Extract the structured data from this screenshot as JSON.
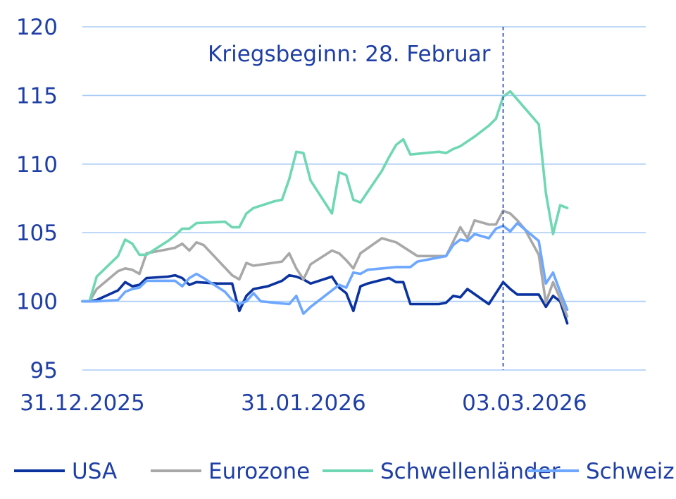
{
  "chart_data": {
    "type": "line",
    "title": "",
    "xlabel": "",
    "ylabel": "",
    "x_start": "2025-12-31",
    "x_end": "2026-03-20",
    "ylim": [
      95,
      120
    ],
    "y_ticks": [
      95,
      100,
      105,
      110,
      115,
      120
    ],
    "x_ticks": [
      {
        "date": "2025-12-31",
        "label": "31.12.2025"
      },
      {
        "date": "2026-01-31",
        "label": "31.01.2026"
      },
      {
        "date": "2026-03-03",
        "label": "03.03.2026"
      }
    ],
    "grid": "horizontal",
    "legend_position": "bottom",
    "annotation": {
      "date": "2026-02-28",
      "text": "Kriegsbeginn: 28. Februar",
      "style": "dashed vertical line"
    },
    "series": [
      {
        "name": "USA",
        "color": "#0b33a0",
        "points": [
          [
            "2025-12-31",
            100.0
          ],
          [
            "2026-01-01",
            100.0
          ],
          [
            "2026-01-02",
            100.1
          ],
          [
            "2026-01-05",
            100.8
          ],
          [
            "2026-01-06",
            101.4
          ],
          [
            "2026-01-07",
            101.1
          ],
          [
            "2026-01-08",
            101.2
          ],
          [
            "2026-01-09",
            101.7
          ],
          [
            "2026-01-12",
            101.8
          ],
          [
            "2026-01-13",
            101.9
          ],
          [
            "2026-01-14",
            101.7
          ],
          [
            "2026-01-15",
            101.2
          ],
          [
            "2026-01-16",
            101.4
          ],
          [
            "2026-01-19",
            101.3
          ],
          [
            "2026-01-20",
            101.3
          ],
          [
            "2026-01-21",
            101.3
          ],
          [
            "2026-01-22",
            99.3
          ],
          [
            "2026-01-23",
            100.4
          ],
          [
            "2026-01-24",
            100.9
          ],
          [
            "2026-01-26",
            101.1
          ],
          [
            "2026-01-27",
            101.3
          ],
          [
            "2026-01-28",
            101.5
          ],
          [
            "2026-01-29",
            101.9
          ],
          [
            "2026-01-30",
            101.8
          ],
          [
            "2026-01-31",
            101.6
          ],
          [
            "2026-02-01",
            101.3
          ],
          [
            "2026-02-04",
            101.8
          ],
          [
            "2026-02-05",
            101.0
          ],
          [
            "2026-02-06",
            100.6
          ],
          [
            "2026-02-07",
            99.3
          ],
          [
            "2026-02-08",
            101.1
          ],
          [
            "2026-02-09",
            101.3
          ],
          [
            "2026-02-12",
            101.7
          ],
          [
            "2026-02-13",
            101.4
          ],
          [
            "2026-02-14",
            101.4
          ],
          [
            "2026-02-15",
            99.8
          ],
          [
            "2026-02-19",
            99.8
          ],
          [
            "2026-02-20",
            99.9
          ],
          [
            "2026-02-21",
            100.4
          ],
          [
            "2026-02-22",
            100.3
          ],
          [
            "2026-02-23",
            100.9
          ],
          [
            "2026-02-26",
            99.8
          ],
          [
            "2026-02-28",
            101.4
          ],
          [
            "2026-03-01",
            100.9
          ],
          [
            "2026-03-02",
            100.5
          ],
          [
            "2026-03-05",
            100.5
          ],
          [
            "2026-03-06",
            99.6
          ],
          [
            "2026-03-07",
            100.4
          ],
          [
            "2026-03-08",
            100.0
          ],
          [
            "2026-03-09",
            98.4
          ]
        ]
      },
      {
        "name": "Eurozone",
        "color": "#a8a8a8",
        "points": [
          [
            "2025-12-31",
            100.0
          ],
          [
            "2026-01-01",
            100.0
          ],
          [
            "2026-01-02",
            100.9
          ],
          [
            "2026-01-05",
            102.2
          ],
          [
            "2026-01-06",
            102.4
          ],
          [
            "2026-01-07",
            102.3
          ],
          [
            "2026-01-08",
            102.0
          ],
          [
            "2026-01-09",
            103.5
          ],
          [
            "2026-01-12",
            103.8
          ],
          [
            "2026-01-13",
            103.9
          ],
          [
            "2026-01-14",
            104.2
          ],
          [
            "2026-01-15",
            103.7
          ],
          [
            "2026-01-16",
            104.3
          ],
          [
            "2026-01-17",
            104.1
          ],
          [
            "2026-01-21",
            101.9
          ],
          [
            "2026-01-22",
            101.6
          ],
          [
            "2026-01-23",
            102.8
          ],
          [
            "2026-01-24",
            102.6
          ],
          [
            "2026-01-28",
            102.9
          ],
          [
            "2026-01-29",
            103.5
          ],
          [
            "2026-01-30",
            102.4
          ],
          [
            "2026-01-31",
            101.6
          ],
          [
            "2026-02-01",
            102.7
          ],
          [
            "2026-02-04",
            103.7
          ],
          [
            "2026-02-05",
            103.5
          ],
          [
            "2026-02-06",
            103.0
          ],
          [
            "2026-02-07",
            102.4
          ],
          [
            "2026-02-08",
            103.5
          ],
          [
            "2026-02-11",
            104.6
          ],
          [
            "2026-02-13",
            104.3
          ],
          [
            "2026-02-16",
            103.3
          ],
          [
            "2026-02-20",
            103.3
          ],
          [
            "2026-02-22",
            105.4
          ],
          [
            "2026-02-23",
            104.6
          ],
          [
            "2026-02-24",
            105.9
          ],
          [
            "2026-02-26",
            105.6
          ],
          [
            "2026-02-27",
            105.6
          ],
          [
            "2026-02-28",
            106.6
          ],
          [
            "2026-03-01",
            106.4
          ],
          [
            "2026-03-02",
            105.9
          ],
          [
            "2026-03-03",
            105.3
          ],
          [
            "2026-03-05",
            103.4
          ],
          [
            "2026-03-06",
            99.9
          ],
          [
            "2026-03-07",
            101.4
          ],
          [
            "2026-03-08",
            100.2
          ],
          [
            "2026-03-09",
            98.9
          ]
        ]
      },
      {
        "name": "Schwellenländer",
        "color": "#6fd7b4",
        "points": [
          [
            "2025-12-31",
            100.0
          ],
          [
            "2026-01-01",
            100.0
          ],
          [
            "2026-01-02",
            101.8
          ],
          [
            "2026-01-05",
            103.3
          ],
          [
            "2026-01-06",
            104.5
          ],
          [
            "2026-01-07",
            104.2
          ],
          [
            "2026-01-08",
            103.4
          ],
          [
            "2026-01-09",
            103.4
          ],
          [
            "2026-01-12",
            104.4
          ],
          [
            "2026-01-13",
            104.8
          ],
          [
            "2026-01-14",
            105.3
          ],
          [
            "2026-01-15",
            105.3
          ],
          [
            "2026-01-16",
            105.7
          ],
          [
            "2026-01-20",
            105.8
          ],
          [
            "2026-01-21",
            105.4
          ],
          [
            "2026-01-22",
            105.4
          ],
          [
            "2026-01-23",
            106.4
          ],
          [
            "2026-01-24",
            106.8
          ],
          [
            "2026-01-27",
            107.3
          ],
          [
            "2026-01-28",
            107.4
          ],
          [
            "2026-01-29",
            108.9
          ],
          [
            "2026-01-30",
            110.9
          ],
          [
            "2026-01-31",
            110.8
          ],
          [
            "2026-02-01",
            108.8
          ],
          [
            "2026-02-04",
            106.4
          ],
          [
            "2026-02-05",
            109.4
          ],
          [
            "2026-02-06",
            109.2
          ],
          [
            "2026-02-07",
            107.4
          ],
          [
            "2026-02-08",
            107.2
          ],
          [
            "2026-02-11",
            109.5
          ],
          [
            "2026-02-12",
            110.5
          ],
          [
            "2026-02-13",
            111.4
          ],
          [
            "2026-02-14",
            111.8
          ],
          [
            "2026-02-15",
            110.7
          ],
          [
            "2026-02-19",
            110.9
          ],
          [
            "2026-02-20",
            110.8
          ],
          [
            "2026-02-21",
            111.1
          ],
          [
            "2026-02-22",
            111.3
          ],
          [
            "2026-02-24",
            112.0
          ],
          [
            "2026-02-26",
            112.8
          ],
          [
            "2026-02-27",
            113.3
          ],
          [
            "2026-02-28",
            114.9
          ],
          [
            "2026-03-01",
            115.3
          ],
          [
            "2026-03-02",
            114.7
          ],
          [
            "2026-03-05",
            112.9
          ],
          [
            "2026-03-06",
            107.9
          ],
          [
            "2026-03-07",
            104.9
          ],
          [
            "2026-03-08",
            107.0
          ],
          [
            "2026-03-09",
            106.8
          ]
        ]
      },
      {
        "name": "Schweiz",
        "color": "#6da7ff",
        "points": [
          [
            "2025-12-31",
            100.0
          ],
          [
            "2026-01-01",
            100.0
          ],
          [
            "2026-01-02",
            100.0
          ],
          [
            "2026-01-05",
            100.1
          ],
          [
            "2026-01-06",
            100.7
          ],
          [
            "2026-01-07",
            100.9
          ],
          [
            "2026-01-08",
            101.0
          ],
          [
            "2026-01-09",
            101.5
          ],
          [
            "2026-01-12",
            101.5
          ],
          [
            "2026-01-13",
            101.5
          ],
          [
            "2026-01-14",
            101.1
          ],
          [
            "2026-01-15",
            101.7
          ],
          [
            "2026-01-16",
            102.0
          ],
          [
            "2026-01-17",
            101.7
          ],
          [
            "2026-01-20",
            100.7
          ],
          [
            "2026-01-21",
            100.1
          ],
          [
            "2026-01-22",
            99.8
          ],
          [
            "2026-01-23",
            100.0
          ],
          [
            "2026-01-24",
            100.6
          ],
          [
            "2026-01-25",
            100.0
          ],
          [
            "2026-01-29",
            99.8
          ],
          [
            "2026-01-30",
            100.4
          ],
          [
            "2026-01-31",
            99.1
          ],
          [
            "2026-02-01",
            99.6
          ],
          [
            "2026-02-05",
            101.2
          ],
          [
            "2026-02-06",
            101.0
          ],
          [
            "2026-02-07",
            102.1
          ],
          [
            "2026-02-08",
            102.0
          ],
          [
            "2026-02-09",
            102.3
          ],
          [
            "2026-02-13",
            102.5
          ],
          [
            "2026-02-15",
            102.5
          ],
          [
            "2026-02-16",
            102.9
          ],
          [
            "2026-02-20",
            103.3
          ],
          [
            "2026-02-21",
            104.1
          ],
          [
            "2026-02-22",
            104.5
          ],
          [
            "2026-02-23",
            104.4
          ],
          [
            "2026-02-24",
            104.9
          ],
          [
            "2026-02-26",
            104.6
          ],
          [
            "2026-02-27",
            105.3
          ],
          [
            "2026-02-28",
            105.5
          ],
          [
            "2026-03-01",
            105.1
          ],
          [
            "2026-03-02",
            105.7
          ],
          [
            "2026-03-05",
            104.4
          ],
          [
            "2026-03-06",
            101.3
          ],
          [
            "2026-03-07",
            102.1
          ],
          [
            "2026-03-08",
            100.7
          ],
          [
            "2026-03-09",
            99.4
          ]
        ]
      }
    ]
  }
}
